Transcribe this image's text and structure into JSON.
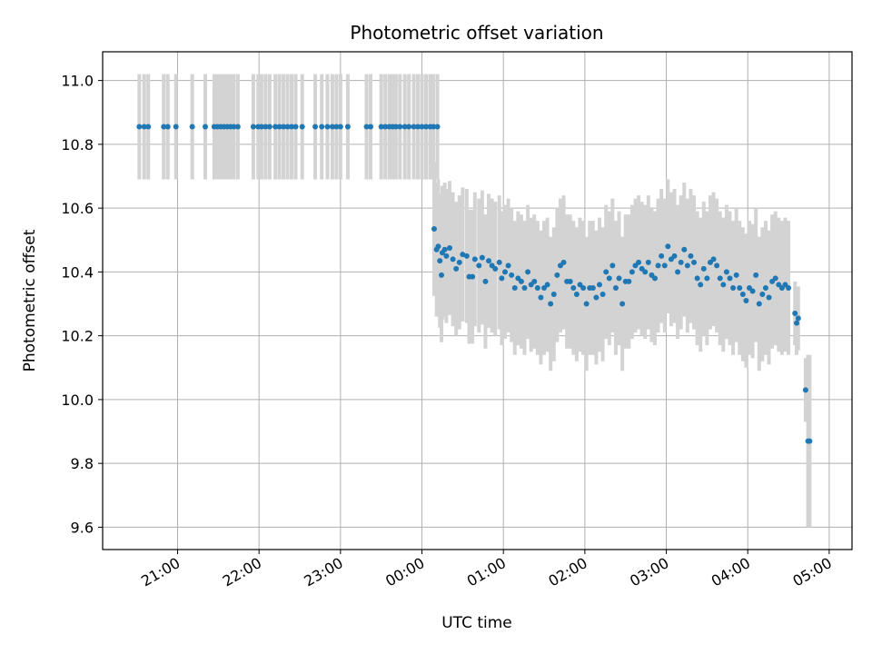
{
  "chart_data": {
    "type": "scatter",
    "title": "Photometric offset variation",
    "xlabel": "UTC time",
    "ylabel": "Photometric offset",
    "x_unit": "hours UTC (continuing past midnight)",
    "xlim": [
      20.08,
      29.28
    ],
    "ylim": [
      9.53,
      11.09
    ],
    "x_ticks": [
      {
        "value": 21,
        "label": "21:00"
      },
      {
        "value": 22,
        "label": "22:00"
      },
      {
        "value": 23,
        "label": "23:00"
      },
      {
        "value": 24,
        "label": "00:00"
      },
      {
        "value": 25,
        "label": "01:00"
      },
      {
        "value": 26,
        "label": "02:00"
      },
      {
        "value": 27,
        "label": "03:00"
      },
      {
        "value": 28,
        "label": "04:00"
      },
      {
        "value": 29,
        "label": "05:00"
      }
    ],
    "y_ticks": [
      {
        "value": 9.6,
        "label": "9.6"
      },
      {
        "value": 9.8,
        "label": "9.8"
      },
      {
        "value": 10.0,
        "label": "10.0"
      },
      {
        "value": 10.2,
        "label": "10.2"
      },
      {
        "value": 10.4,
        "label": "10.4"
      },
      {
        "value": 10.6,
        "label": "10.6"
      },
      {
        "value": 10.8,
        "label": "10.8"
      },
      {
        "value": 11.0,
        "label": "11.0"
      }
    ],
    "grid": true,
    "marker_color": "#1f77b4",
    "errorbar_color": "#d3d3d3",
    "points": [
      {
        "x": 20.53,
        "y": 10.855,
        "err": 0.165
      },
      {
        "x": 20.59,
        "y": 10.855,
        "err": 0.165
      },
      {
        "x": 20.64,
        "y": 10.855,
        "err": 0.165
      },
      {
        "x": 20.83,
        "y": 10.855,
        "err": 0.165
      },
      {
        "x": 20.88,
        "y": 10.855,
        "err": 0.165
      },
      {
        "x": 20.98,
        "y": 10.855,
        "err": 0.165
      },
      {
        "x": 21.18,
        "y": 10.855,
        "err": 0.165
      },
      {
        "x": 21.34,
        "y": 10.855,
        "err": 0.165
      },
      {
        "x": 21.45,
        "y": 10.855,
        "err": 0.165
      },
      {
        "x": 21.49,
        "y": 10.855,
        "err": 0.165
      },
      {
        "x": 21.53,
        "y": 10.855,
        "err": 0.165
      },
      {
        "x": 21.57,
        "y": 10.855,
        "err": 0.165
      },
      {
        "x": 21.61,
        "y": 10.855,
        "err": 0.165
      },
      {
        "x": 21.65,
        "y": 10.855,
        "err": 0.165
      },
      {
        "x": 21.69,
        "y": 10.855,
        "err": 0.165
      },
      {
        "x": 21.74,
        "y": 10.855,
        "err": 0.165
      },
      {
        "x": 21.93,
        "y": 10.855,
        "err": 0.165
      },
      {
        "x": 21.99,
        "y": 10.855,
        "err": 0.165
      },
      {
        "x": 22.03,
        "y": 10.855,
        "err": 0.165
      },
      {
        "x": 22.08,
        "y": 10.855,
        "err": 0.165
      },
      {
        "x": 22.13,
        "y": 10.855,
        "err": 0.165
      },
      {
        "x": 22.2,
        "y": 10.855,
        "err": 0.165
      },
      {
        "x": 22.25,
        "y": 10.855,
        "err": 0.165
      },
      {
        "x": 22.3,
        "y": 10.855,
        "err": 0.165
      },
      {
        "x": 22.35,
        "y": 10.855,
        "err": 0.165
      },
      {
        "x": 22.4,
        "y": 10.855,
        "err": 0.165
      },
      {
        "x": 22.45,
        "y": 10.855,
        "err": 0.165
      },
      {
        "x": 22.53,
        "y": 10.855,
        "err": 0.165
      },
      {
        "x": 22.69,
        "y": 10.855,
        "err": 0.165
      },
      {
        "x": 22.77,
        "y": 10.855,
        "err": 0.165
      },
      {
        "x": 22.84,
        "y": 10.855,
        "err": 0.165
      },
      {
        "x": 22.9,
        "y": 10.855,
        "err": 0.165
      },
      {
        "x": 22.95,
        "y": 10.855,
        "err": 0.165
      },
      {
        "x": 23.0,
        "y": 10.855,
        "err": 0.165
      },
      {
        "x": 23.09,
        "y": 10.855,
        "err": 0.165
      },
      {
        "x": 23.32,
        "y": 10.855,
        "err": 0.165
      },
      {
        "x": 23.37,
        "y": 10.855,
        "err": 0.165
      },
      {
        "x": 23.5,
        "y": 10.855,
        "err": 0.165
      },
      {
        "x": 23.55,
        "y": 10.855,
        "err": 0.165
      },
      {
        "x": 23.6,
        "y": 10.855,
        "err": 0.165
      },
      {
        "x": 23.64,
        "y": 10.855,
        "err": 0.165
      },
      {
        "x": 23.68,
        "y": 10.855,
        "err": 0.165
      },
      {
        "x": 23.73,
        "y": 10.855,
        "err": 0.165
      },
      {
        "x": 23.79,
        "y": 10.855,
        "err": 0.165
      },
      {
        "x": 23.84,
        "y": 10.855,
        "err": 0.165
      },
      {
        "x": 23.9,
        "y": 10.855,
        "err": 0.165
      },
      {
        "x": 23.95,
        "y": 10.855,
        "err": 0.165
      },
      {
        "x": 24.0,
        "y": 10.855,
        "err": 0.165
      },
      {
        "x": 24.05,
        "y": 10.855,
        "err": 0.165
      },
      {
        "x": 24.1,
        "y": 10.855,
        "err": 0.165
      },
      {
        "x": 24.14,
        "y": 10.855,
        "err": 0.165
      },
      {
        "x": 24.19,
        "y": 10.855,
        "err": 0.165
      },
      {
        "x": 24.15,
        "y": 10.535,
        "err": 0.21
      },
      {
        "x": 24.18,
        "y": 10.47,
        "err": 0.21
      },
      {
        "x": 24.2,
        "y": 10.48,
        "err": 0.21
      },
      {
        "x": 24.22,
        "y": 10.435,
        "err": 0.21
      },
      {
        "x": 24.24,
        "y": 10.39,
        "err": 0.21
      },
      {
        "x": 24.25,
        "y": 10.46,
        "err": 0.21
      },
      {
        "x": 24.28,
        "y": 10.47,
        "err": 0.21
      },
      {
        "x": 24.3,
        "y": 10.45,
        "err": 0.21
      },
      {
        "x": 24.34,
        "y": 10.475,
        "err": 0.21
      },
      {
        "x": 24.38,
        "y": 10.44,
        "err": 0.21
      },
      {
        "x": 24.42,
        "y": 10.41,
        "err": 0.21
      },
      {
        "x": 24.46,
        "y": 10.43,
        "err": 0.21
      },
      {
        "x": 24.5,
        "y": 10.455,
        "err": 0.21
      },
      {
        "x": 24.55,
        "y": 10.45,
        "err": 0.21
      },
      {
        "x": 24.58,
        "y": 10.385,
        "err": 0.21
      },
      {
        "x": 24.62,
        "y": 10.385,
        "err": 0.21
      },
      {
        "x": 24.65,
        "y": 10.44,
        "err": 0.21
      },
      {
        "x": 24.7,
        "y": 10.42,
        "err": 0.21
      },
      {
        "x": 24.74,
        "y": 10.445,
        "err": 0.21
      },
      {
        "x": 24.78,
        "y": 10.37,
        "err": 0.21
      },
      {
        "x": 24.82,
        "y": 10.435,
        "err": 0.21
      },
      {
        "x": 24.86,
        "y": 10.42,
        "err": 0.21
      },
      {
        "x": 24.9,
        "y": 10.41,
        "err": 0.21
      },
      {
        "x": 24.95,
        "y": 10.43,
        "err": 0.21
      },
      {
        "x": 24.98,
        "y": 10.38,
        "err": 0.21
      },
      {
        "x": 25.02,
        "y": 10.4,
        "err": 0.21
      },
      {
        "x": 25.06,
        "y": 10.42,
        "err": 0.21
      },
      {
        "x": 25.1,
        "y": 10.39,
        "err": 0.21
      },
      {
        "x": 25.14,
        "y": 10.35,
        "err": 0.21
      },
      {
        "x": 25.18,
        "y": 10.38,
        "err": 0.21
      },
      {
        "x": 25.22,
        "y": 10.37,
        "err": 0.21
      },
      {
        "x": 25.26,
        "y": 10.35,
        "err": 0.21
      },
      {
        "x": 25.3,
        "y": 10.4,
        "err": 0.21
      },
      {
        "x": 25.34,
        "y": 10.36,
        "err": 0.21
      },
      {
        "x": 25.38,
        "y": 10.37,
        "err": 0.21
      },
      {
        "x": 25.42,
        "y": 10.35,
        "err": 0.21
      },
      {
        "x": 25.46,
        "y": 10.32,
        "err": 0.21
      },
      {
        "x": 25.5,
        "y": 10.35,
        "err": 0.21
      },
      {
        "x": 25.54,
        "y": 10.36,
        "err": 0.21
      },
      {
        "x": 25.58,
        "y": 10.3,
        "err": 0.21
      },
      {
        "x": 25.62,
        "y": 10.33,
        "err": 0.21
      },
      {
        "x": 25.66,
        "y": 10.39,
        "err": 0.21
      },
      {
        "x": 25.7,
        "y": 10.42,
        "err": 0.21
      },
      {
        "x": 25.74,
        "y": 10.43,
        "err": 0.21
      },
      {
        "x": 25.78,
        "y": 10.37,
        "err": 0.21
      },
      {
        "x": 25.82,
        "y": 10.37,
        "err": 0.21
      },
      {
        "x": 25.86,
        "y": 10.35,
        "err": 0.21
      },
      {
        "x": 25.9,
        "y": 10.33,
        "err": 0.21
      },
      {
        "x": 25.94,
        "y": 10.36,
        "err": 0.21
      },
      {
        "x": 25.98,
        "y": 10.35,
        "err": 0.21
      },
      {
        "x": 26.02,
        "y": 10.3,
        "err": 0.21
      },
      {
        "x": 26.06,
        "y": 10.35,
        "err": 0.21
      },
      {
        "x": 26.1,
        "y": 10.35,
        "err": 0.21
      },
      {
        "x": 26.14,
        "y": 10.32,
        "err": 0.21
      },
      {
        "x": 26.18,
        "y": 10.36,
        "err": 0.21
      },
      {
        "x": 26.22,
        "y": 10.33,
        "err": 0.21
      },
      {
        "x": 26.26,
        "y": 10.4,
        "err": 0.21
      },
      {
        "x": 26.3,
        "y": 10.38,
        "err": 0.21
      },
      {
        "x": 26.34,
        "y": 10.42,
        "err": 0.21
      },
      {
        "x": 26.38,
        "y": 10.35,
        "err": 0.21
      },
      {
        "x": 26.42,
        "y": 10.38,
        "err": 0.21
      },
      {
        "x": 26.46,
        "y": 10.3,
        "err": 0.21
      },
      {
        "x": 26.5,
        "y": 10.37,
        "err": 0.21
      },
      {
        "x": 26.54,
        "y": 10.37,
        "err": 0.21
      },
      {
        "x": 26.58,
        "y": 10.4,
        "err": 0.21
      },
      {
        "x": 26.62,
        "y": 10.42,
        "err": 0.21
      },
      {
        "x": 26.66,
        "y": 10.43,
        "err": 0.21
      },
      {
        "x": 26.7,
        "y": 10.41,
        "err": 0.21
      },
      {
        "x": 26.74,
        "y": 10.4,
        "err": 0.21
      },
      {
        "x": 26.78,
        "y": 10.43,
        "err": 0.21
      },
      {
        "x": 26.82,
        "y": 10.39,
        "err": 0.21
      },
      {
        "x": 26.86,
        "y": 10.38,
        "err": 0.21
      },
      {
        "x": 26.9,
        "y": 10.42,
        "err": 0.21
      },
      {
        "x": 26.94,
        "y": 10.45,
        "err": 0.21
      },
      {
        "x": 26.98,
        "y": 10.42,
        "err": 0.21
      },
      {
        "x": 27.02,
        "y": 10.48,
        "err": 0.21
      },
      {
        "x": 27.06,
        "y": 10.44,
        "err": 0.21
      },
      {
        "x": 27.1,
        "y": 10.45,
        "err": 0.21
      },
      {
        "x": 27.14,
        "y": 10.4,
        "err": 0.21
      },
      {
        "x": 27.18,
        "y": 10.43,
        "err": 0.21
      },
      {
        "x": 27.22,
        "y": 10.47,
        "err": 0.21
      },
      {
        "x": 27.26,
        "y": 10.42,
        "err": 0.21
      },
      {
        "x": 27.3,
        "y": 10.45,
        "err": 0.21
      },
      {
        "x": 27.34,
        "y": 10.43,
        "err": 0.21
      },
      {
        "x": 27.38,
        "y": 10.38,
        "err": 0.21
      },
      {
        "x": 27.42,
        "y": 10.36,
        "err": 0.21
      },
      {
        "x": 27.46,
        "y": 10.41,
        "err": 0.21
      },
      {
        "x": 27.5,
        "y": 10.38,
        "err": 0.21
      },
      {
        "x": 27.54,
        "y": 10.43,
        "err": 0.21
      },
      {
        "x": 27.58,
        "y": 10.44,
        "err": 0.21
      },
      {
        "x": 27.62,
        "y": 10.42,
        "err": 0.21
      },
      {
        "x": 27.66,
        "y": 10.38,
        "err": 0.21
      },
      {
        "x": 27.7,
        "y": 10.36,
        "err": 0.21
      },
      {
        "x": 27.74,
        "y": 10.4,
        "err": 0.21
      },
      {
        "x": 27.78,
        "y": 10.38,
        "err": 0.21
      },
      {
        "x": 27.82,
        "y": 10.35,
        "err": 0.21
      },
      {
        "x": 27.86,
        "y": 10.39,
        "err": 0.21
      },
      {
        "x": 27.9,
        "y": 10.35,
        "err": 0.21
      },
      {
        "x": 27.94,
        "y": 10.33,
        "err": 0.21
      },
      {
        "x": 27.98,
        "y": 10.31,
        "err": 0.21
      },
      {
        "x": 28.02,
        "y": 10.35,
        "err": 0.21
      },
      {
        "x": 28.06,
        "y": 10.34,
        "err": 0.21
      },
      {
        "x": 28.1,
        "y": 10.39,
        "err": 0.21
      },
      {
        "x": 28.14,
        "y": 10.3,
        "err": 0.21
      },
      {
        "x": 28.18,
        "y": 10.33,
        "err": 0.21
      },
      {
        "x": 28.22,
        "y": 10.35,
        "err": 0.21
      },
      {
        "x": 28.26,
        "y": 10.32,
        "err": 0.21
      },
      {
        "x": 28.3,
        "y": 10.37,
        "err": 0.21
      },
      {
        "x": 28.34,
        "y": 10.38,
        "err": 0.21
      },
      {
        "x": 28.38,
        "y": 10.36,
        "err": 0.21
      },
      {
        "x": 28.42,
        "y": 10.35,
        "err": 0.21
      },
      {
        "x": 28.46,
        "y": 10.36,
        "err": 0.21
      },
      {
        "x": 28.5,
        "y": 10.35,
        "err": 0.21
      },
      {
        "x": 28.58,
        "y": 10.27,
        "err": 0.1
      },
      {
        "x": 28.6,
        "y": 10.24,
        "err": 0.1
      },
      {
        "x": 28.62,
        "y": 10.255,
        "err": 0.1
      },
      {
        "x": 28.71,
        "y": 10.03,
        "err": 0.1
      },
      {
        "x": 28.74,
        "y": 9.87,
        "err": 0.27
      },
      {
        "x": 28.76,
        "y": 9.87,
        "err": 0.27
      }
    ]
  }
}
